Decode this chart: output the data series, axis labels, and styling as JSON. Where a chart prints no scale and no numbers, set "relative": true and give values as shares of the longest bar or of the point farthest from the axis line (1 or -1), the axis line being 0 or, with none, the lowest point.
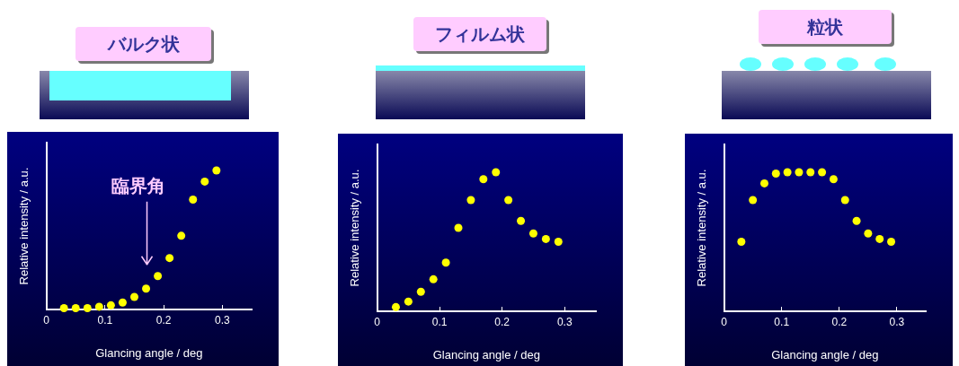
{
  "chart_data": [
    {
      "type": "scatter",
      "title": "バルク状",
      "xlabel": "Glancing angle / deg",
      "ylabel": "Relative intensity / a.u.",
      "relative": true,
      "x": [
        0.03,
        0.05,
        0.07,
        0.09,
        0.11,
        0.13,
        0.15,
        0.17,
        0.19,
        0.21,
        0.23,
        0.25,
        0.27,
        0.29
      ],
      "series": [
        {
          "color": "#ffff00",
          "values": [
            0.01,
            0.01,
            0.01,
            0.02,
            0.03,
            0.05,
            0.09,
            0.15,
            0.24,
            0.37,
            0.53,
            0.79,
            0.92,
            1
          ]
        }
      ],
      "xlim": [
        0,
        0.35
      ],
      "xticks": [
        0,
        0.1,
        0.2,
        0.3
      ],
      "tick_labels": "x",
      "grid": false,
      "legend": false,
      "marker": "circle",
      "annotations": [
        "臨界角"
      ]
    },
    {
      "type": "scatter",
      "title": "フィルム状",
      "xlabel": "Glancing angle / deg",
      "ylabel": "Relative intensity / a.u.",
      "relative": true,
      "x": [
        0.03,
        0.05,
        0.07,
        0.09,
        0.11,
        0.13,
        0.15,
        0.17,
        0.19,
        0.21,
        0.23,
        0.25,
        0.27,
        0.29
      ],
      "series": [
        {
          "color": "#ffff00",
          "values": [
            0.03,
            0.07,
            0.14,
            0.23,
            0.35,
            0.6,
            0.8,
            0.95,
            1,
            0.8,
            0.65,
            0.56,
            0.52,
            0.5
          ]
        }
      ],
      "xlim": [
        0,
        0.35
      ],
      "xticks": [
        0,
        0.1,
        0.2,
        0.3
      ],
      "tick_labels": "x",
      "grid": false,
      "legend": false,
      "marker": "circle"
    },
    {
      "type": "scatter",
      "title": "粒状",
      "xlabel": "Glancing angle / deg",
      "ylabel": "Relative intensity / a.u.",
      "relative": true,
      "x": [
        0.03,
        0.05,
        0.07,
        0.09,
        0.11,
        0.13,
        0.15,
        0.17,
        0.19,
        0.21,
        0.23,
        0.25,
        0.27,
        0.29
      ],
      "series": [
        {
          "color": "#ffff00",
          "values": [
            0.5,
            0.8,
            0.92,
            0.99,
            1,
            1,
            1,
            1,
            0.95,
            0.8,
            0.65,
            0.56,
            0.52,
            0.5
          ]
        }
      ],
      "xlim": [
        0,
        0.35
      ],
      "xticks": [
        0,
        0.1,
        0.2,
        0.3
      ],
      "tick_labels": "x",
      "grid": false,
      "legend": false,
      "marker": "circle"
    }
  ]
}
